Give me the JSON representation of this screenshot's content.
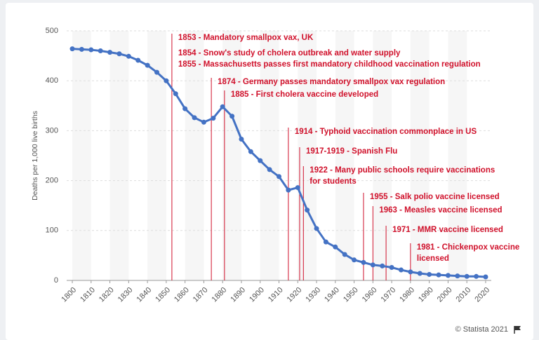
{
  "chart_data": {
    "type": "line",
    "y_label": "Deaths per 1,000 live births",
    "x": [
      1800,
      1805,
      1810,
      1815,
      1820,
      1825,
      1830,
      1835,
      1840,
      1845,
      1850,
      1855,
      1860,
      1865,
      1870,
      1875,
      1880,
      1885,
      1890,
      1895,
      1900,
      1905,
      1910,
      1915,
      1920,
      1925,
      1930,
      1935,
      1940,
      1945,
      1950,
      1955,
      1960,
      1965,
      1970,
      1975,
      1980,
      1985,
      1990,
      1995,
      2000,
      2005,
      2010,
      2015,
      2020
    ],
    "series": [
      {
        "color": "#4472c4",
        "values": [
          464,
          463,
          462,
          460,
          457,
          454,
          449,
          441,
          431,
          417,
          400,
          374,
          344,
          326,
          317,
          325,
          348,
          329,
          283,
          258,
          240,
          222,
          208,
          181,
          186,
          141,
          104,
          77,
          67,
          52,
          41,
          36,
          31,
          29,
          26,
          21,
          17,
          14,
          12,
          11,
          10,
          9,
          8,
          8,
          7
        ]
      }
    ],
    "xlim": [
      1797,
      2023
    ],
    "xticks": [
      1800,
      1810,
      1820,
      1830,
      1840,
      1850,
      1860,
      1870,
      1880,
      1890,
      1900,
      1910,
      1920,
      1930,
      1940,
      1950,
      1960,
      1970,
      1980,
      1990,
      2000,
      2010,
      2020
    ],
    "ylim": [
      0,
      500
    ],
    "yticks": [
      0,
      100,
      200,
      300,
      400,
      500
    ],
    "grid": true,
    "annotation_color": "#d0112b",
    "annotations": [
      {
        "x": 1853,
        "text": [
          "1853 - Mandatory smallpox vax, UK",
          "1854 - Snow's study of cholera outbreak and water supply",
          "1855 - Massachusetts passes first mandatory childhood vaccination regulation"
        ]
      },
      {
        "x": 1874,
        "text": [
          "1874 - Germany passes mandatory smallpox vax regulation"
        ]
      },
      {
        "x": 1881,
        "text": [
          "1885 - First cholera vaccine developed"
        ]
      },
      {
        "x": 1915,
        "text": [
          "1914 - Typhoid vaccination commonplace in US"
        ]
      },
      {
        "x": 1921,
        "text": [
          "1917-1919 - Spanish Flu"
        ]
      },
      {
        "x": 1923,
        "text": [
          "1922 - Many public schools require vaccinations",
          "for students"
        ]
      },
      {
        "x": 1955,
        "text": [
          "1955 - Salk polio vaccine licensed"
        ]
      },
      {
        "x": 1960,
        "text": [
          "1963 - Measles vaccine licensed"
        ]
      },
      {
        "x": 1967,
        "text": [
          "1971 - MMR vaccine licensed"
        ]
      },
      {
        "x": 1980,
        "text": [
          "1981 - Chickenpox vaccine",
          "licensed"
        ]
      }
    ]
  },
  "footer": "© Statista 2021"
}
